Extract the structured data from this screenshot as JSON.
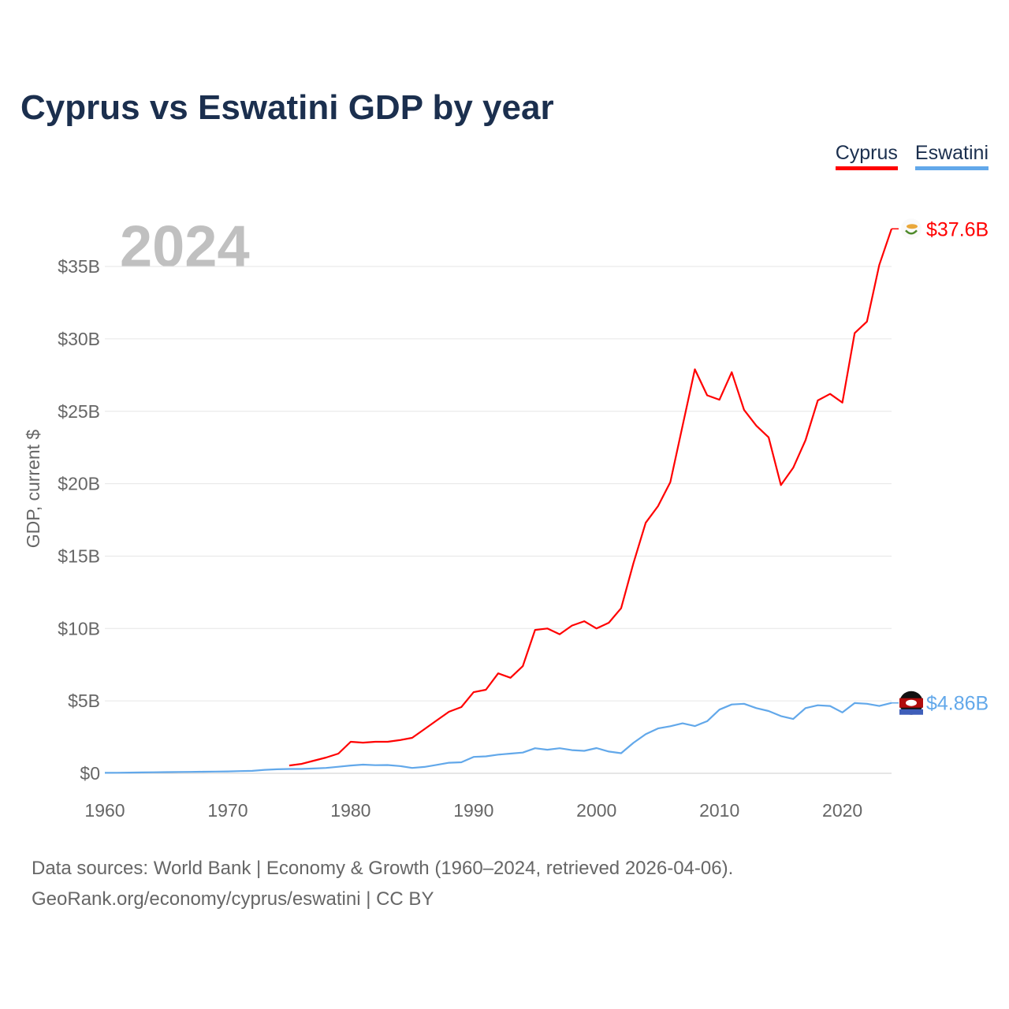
{
  "title": "Cyprus vs Eswatini GDP by year",
  "legend": [
    {
      "label": "Cyprus",
      "color": "#ff0000"
    },
    {
      "label": "Eswatini",
      "color": "#62a8ea"
    }
  ],
  "footer": {
    "line1": "Data sources: World Bank | Economy & Growth (1960–2024, retrieved 2026-04-06).",
    "line2": "GeoRank.org/economy/cyprus/eswatini | CC BY"
  },
  "chart_data": {
    "type": "line",
    "title": "Cyprus vs Eswatini GDP by year",
    "year_label": "2024",
    "ylabel": "GDP, current $",
    "xlabel": "",
    "xlim": [
      1960,
      2024
    ],
    "ylim": [
      0,
      37.6
    ],
    "x_ticks": [
      1960,
      1970,
      1980,
      1990,
      2000,
      2010,
      2020
    ],
    "y_ticks": [
      {
        "v": 0,
        "label": "$0"
      },
      {
        "v": 5,
        "label": "$5B"
      },
      {
        "v": 10,
        "label": "$10B"
      },
      {
        "v": 15,
        "label": "$15B"
      },
      {
        "v": 20,
        "label": "$20B"
      },
      {
        "v": 25,
        "label": "$25B"
      },
      {
        "v": 30,
        "label": "$30B"
      },
      {
        "v": 35,
        "label": "$35B"
      }
    ],
    "grid": true,
    "units": "billions USD",
    "series": [
      {
        "name": "Cyprus",
        "color": "#ff0000",
        "end_label": "$37.6B",
        "start_year": 1975,
        "values": [
          0.54,
          0.65,
          0.87,
          1.09,
          1.36,
          2.18,
          2.12,
          2.18,
          2.18,
          2.29,
          2.45,
          3.05,
          3.65,
          4.25,
          4.57,
          5.6,
          5.77,
          6.9,
          6.6,
          7.4,
          9.9,
          10.0,
          9.6,
          10.2,
          10.5,
          10.0,
          10.4,
          11.4,
          14.5,
          17.3,
          18.45,
          20.1,
          24.0,
          27.9,
          26.1,
          25.8,
          27.7,
          25.1,
          24.0,
          23.2,
          19.9,
          21.1,
          23.0,
          25.75,
          26.2,
          25.6,
          30.4,
          31.2,
          35.1,
          37.6
        ]
      },
      {
        "name": "Eswatini",
        "color": "#62a8ea",
        "end_label": "$4.86B",
        "start_year": 1960,
        "values": [
          0.03,
          0.04,
          0.05,
          0.06,
          0.07,
          0.08,
          0.09,
          0.1,
          0.11,
          0.12,
          0.13,
          0.15,
          0.17,
          0.24,
          0.28,
          0.3,
          0.3,
          0.33,
          0.37,
          0.45,
          0.54,
          0.6,
          0.56,
          0.57,
          0.5,
          0.37,
          0.44,
          0.58,
          0.73,
          0.76,
          1.13,
          1.17,
          1.29,
          1.36,
          1.43,
          1.73,
          1.63,
          1.73,
          1.6,
          1.55,
          1.74,
          1.5,
          1.39,
          2.1,
          2.7,
          3.1,
          3.25,
          3.45,
          3.26,
          3.6,
          4.4,
          4.75,
          4.8,
          4.5,
          4.3,
          3.95,
          3.75,
          4.5,
          4.7,
          4.65,
          4.2,
          4.85,
          4.8,
          4.65,
          4.86
        ]
      }
    ]
  }
}
